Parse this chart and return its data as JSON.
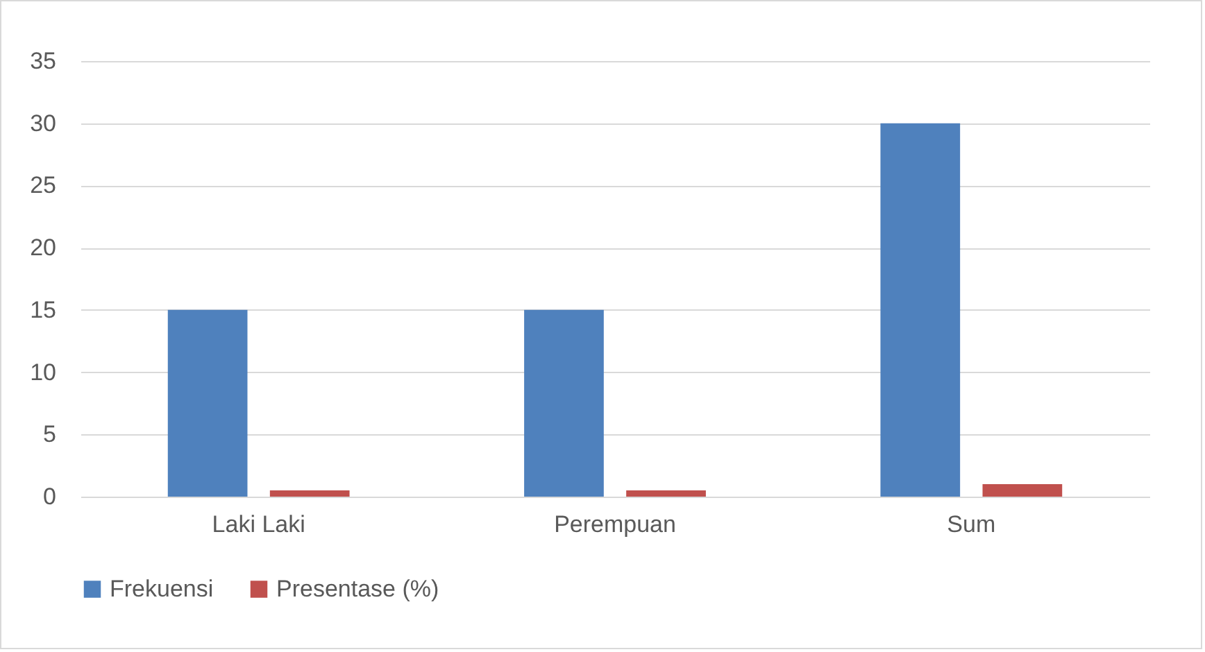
{
  "chart_data": {
    "type": "bar",
    "categories": [
      "Laki Laki",
      "Perempuan",
      "Sum"
    ],
    "series": [
      {
        "name": "Frekuensi",
        "color": "#4f81bd",
        "values": [
          15,
          15,
          30
        ]
      },
      {
        "name": "Presentase (%)",
        "color": "#c0504d",
        "values": [
          0.5,
          0.5,
          1
        ]
      }
    ],
    "ylim": [
      0,
      35
    ],
    "yticks": [
      0,
      5,
      10,
      15,
      20,
      25,
      30,
      35
    ],
    "grid": "y",
    "legend": "bottom"
  }
}
